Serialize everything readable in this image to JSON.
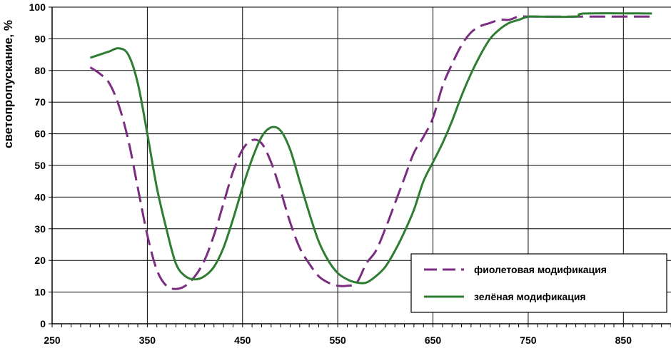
{
  "chart_data": {
    "type": "line",
    "title": "",
    "xlabel": "",
    "ylabel": "светопропускание, %",
    "xlim": [
      250,
      900
    ],
    "ylim": [
      0,
      100
    ],
    "xticks": [
      250,
      350,
      450,
      550,
      650,
      750,
      850
    ],
    "yticks": [
      0,
      10,
      20,
      30,
      40,
      50,
      60,
      70,
      80,
      90,
      100
    ],
    "grid": true,
    "legend_position": "bottom-right",
    "series": [
      {
        "name": "фиолетовая модификация",
        "color": "#7b2d82",
        "style": "dashed",
        "x": [
          290,
          300,
          310,
          320,
          330,
          340,
          350,
          360,
          370,
          380,
          390,
          400,
          410,
          420,
          430,
          440,
          450,
          460,
          470,
          480,
          490,
          500,
          510,
          520,
          530,
          540,
          550,
          560,
          570,
          580,
          590,
          600,
          610,
          620,
          630,
          640,
          650,
          660,
          670,
          680,
          690,
          700,
          710,
          720,
          730,
          740,
          750,
          760,
          800,
          850,
          880
        ],
        "y": [
          81,
          79,
          76,
          69,
          58,
          43,
          28,
          17,
          12,
          11,
          12,
          15,
          20,
          28,
          38,
          48,
          55,
          58,
          57,
          51,
          42,
          32,
          24,
          19,
          15,
          13,
          12,
          12,
          13,
          19,
          23,
          30,
          38,
          46,
          54,
          59,
          65,
          75,
          82,
          88,
          92,
          94,
          95,
          96,
          96,
          97,
          97,
          97,
          97,
          97,
          97
        ]
      },
      {
        "name": "зелёная модификация",
        "color": "#2e7d32",
        "style": "solid",
        "x": [
          290,
          300,
          310,
          320,
          330,
          340,
          350,
          360,
          370,
          380,
          390,
          400,
          410,
          420,
          430,
          440,
          450,
          460,
          470,
          480,
          490,
          500,
          510,
          520,
          530,
          540,
          550,
          560,
          570,
          580,
          590,
          600,
          610,
          620,
          630,
          640,
          650,
          660,
          670,
          680,
          690,
          700,
          710,
          720,
          730,
          740,
          750,
          760,
          800,
          810,
          880
        ],
        "y": [
          84,
          85,
          86,
          87,
          85,
          76,
          60,
          43,
          30,
          19,
          15,
          14,
          15,
          18,
          24,
          33,
          43,
          52,
          59,
          62,
          61,
          55,
          45,
          35,
          26,
          20,
          16,
          14,
          13,
          13,
          15,
          18,
          23,
          29,
          36,
          45,
          51,
          57,
          64,
          72,
          79,
          85,
          90,
          93,
          95,
          96,
          97,
          97,
          97,
          98,
          98
        ]
      }
    ]
  }
}
